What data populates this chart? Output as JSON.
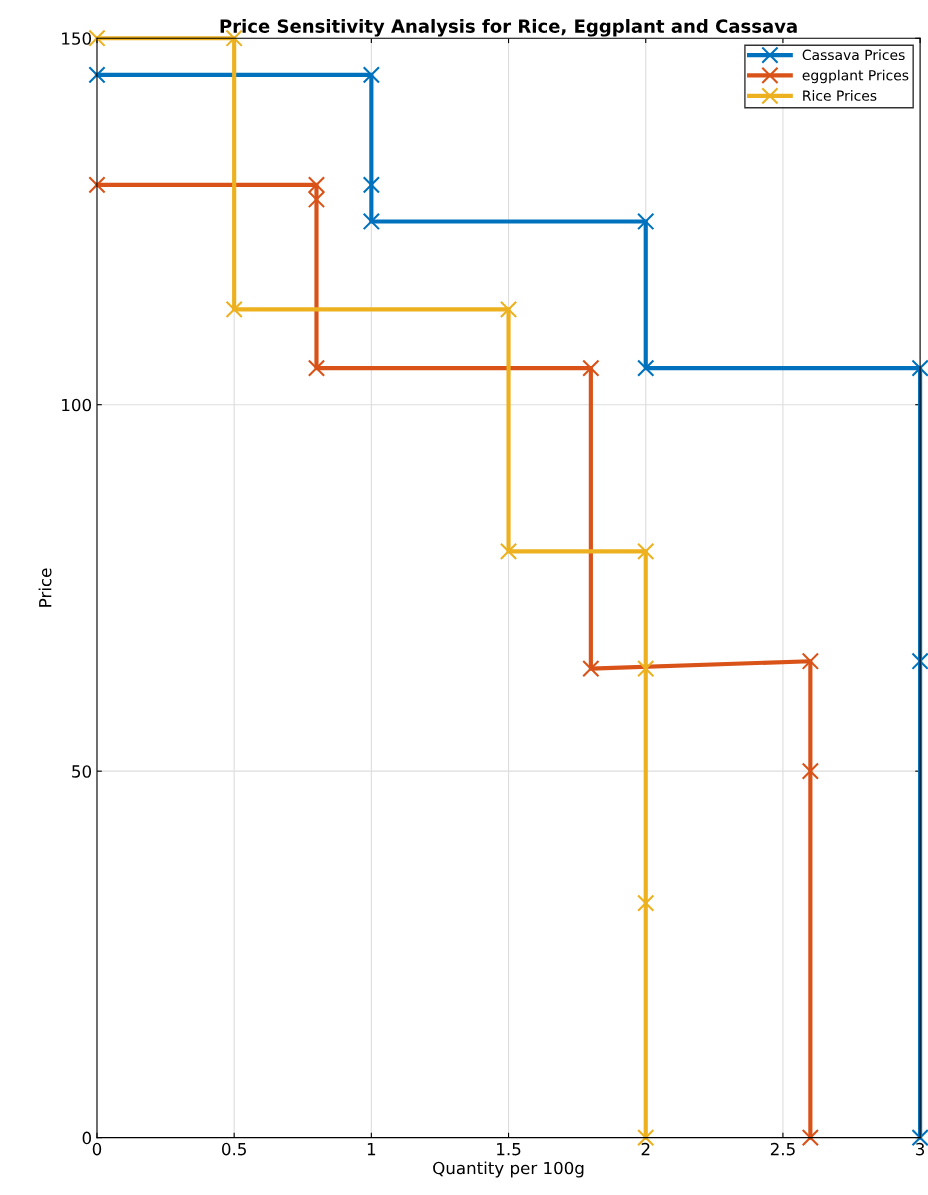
{
  "chart_data": {
    "type": "line",
    "title": "Price Sensitivity Analysis for Rice, Eggplant and Cassava",
    "xlabel": "Quantity per 100g",
    "ylabel": "Price",
    "series": [
      {
        "name": "Cassava Prices",
        "color": "#0072bd",
        "x": [
          0,
          1,
          1,
          1,
          2,
          2,
          3,
          3,
          3
        ],
        "values": [
          145,
          145,
          130,
          125,
          125,
          105,
          105,
          65,
          0
        ]
      },
      {
        "name": "eggplant Prices",
        "color": "#d95319",
        "x": [
          0,
          0.8,
          0.8,
          0.8,
          1.8,
          1.8,
          2.6,
          2.6,
          2.6
        ],
        "values": [
          130,
          130,
          128,
          105,
          105,
          64,
          65,
          50,
          0
        ]
      },
      {
        "name": "Rice Prices",
        "color": "#edb120",
        "x": [
          0,
          0.5,
          0.5,
          1.5,
          1.5,
          2,
          2,
          2,
          2
        ],
        "values": [
          150,
          150,
          113,
          113,
          80,
          80,
          64,
          32,
          0
        ]
      }
    ],
    "xlim": [
      0,
      3
    ],
    "xticks": [
      0,
      0.5,
      1,
      1.5,
      2,
      2.5,
      3
    ],
    "ylim": [
      0,
      150
    ],
    "yticks": [
      0,
      50,
      100,
      150
    ],
    "grid": true,
    "legend": "top right",
    "marker": "cross",
    "line_style": "solid"
  }
}
